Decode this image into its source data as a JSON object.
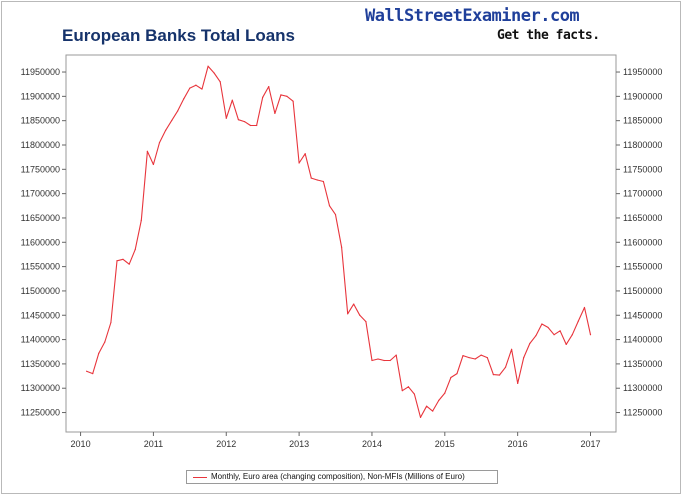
{
  "header": {
    "title": "European Banks Total Loans",
    "brand": "WallStreetExaminer.com",
    "tagline": "Get the facts."
  },
  "colors": {
    "line": "#e8353c",
    "title": "#16336b",
    "brand": "#1f3f9a"
  },
  "chart_data": {
    "type": "line",
    "title": "European Banks Total Loans",
    "xlabel": "",
    "ylabel": "",
    "grid": false,
    "legend_position": "bottom-center",
    "xlim": [
      2009.8,
      2017.35
    ],
    "ylim": [
      11210000,
      11985000
    ],
    "x_ticks": [
      "2010",
      "2011",
      "2012",
      "2013",
      "2014",
      "2015",
      "2016",
      "2017"
    ],
    "y_ticks": [
      "11250000",
      "11300000",
      "11350000",
      "11400000",
      "11450000",
      "11500000",
      "11550000",
      "11600000",
      "11650000",
      "11700000",
      "11750000",
      "11800000",
      "11850000",
      "11900000",
      "11950000"
    ],
    "series": [
      {
        "name": "Monthly, Euro area (changing composition), Non-MFIs (Millions of Euro)",
        "x": [
          2010.083,
          2010.167,
          2010.25,
          2010.333,
          2010.417,
          2010.5,
          2010.583,
          2010.667,
          2010.75,
          2010.833,
          2010.917,
          2011.0,
          2011.083,
          2011.167,
          2011.25,
          2011.333,
          2011.417,
          2011.5,
          2011.583,
          2011.667,
          2011.75,
          2011.833,
          2011.917,
          2012.0,
          2012.083,
          2012.167,
          2012.25,
          2012.333,
          2012.417,
          2012.5,
          2012.583,
          2012.667,
          2012.75,
          2012.833,
          2012.917,
          2013.0,
          2013.083,
          2013.167,
          2013.25,
          2013.333,
          2013.417,
          2013.5,
          2013.583,
          2013.667,
          2013.75,
          2013.833,
          2013.917,
          2014.0,
          2014.083,
          2014.167,
          2014.25,
          2014.333,
          2014.417,
          2014.5,
          2014.583,
          2014.667,
          2014.75,
          2014.833,
          2014.917,
          2015.0,
          2015.083,
          2015.167,
          2015.25,
          2015.333,
          2015.417,
          2015.5,
          2015.583,
          2015.667,
          2015.75,
          2015.833,
          2015.917,
          2016.0,
          2016.083,
          2016.167,
          2016.25,
          2016.333,
          2016.417,
          2016.5,
          2016.583,
          2016.667,
          2016.75,
          2016.833,
          2016.917,
          2017.0
        ],
        "values": [
          11335000,
          11330000,
          11372000,
          11395000,
          11435000,
          11562000,
          11565000,
          11555000,
          11585000,
          11645000,
          11787000,
          11760000,
          11805000,
          11830000,
          11850000,
          11870000,
          11895000,
          11917000,
          11923000,
          11915000,
          11962000,
          11948000,
          11930000,
          11855000,
          11892000,
          11852000,
          11848000,
          11840000,
          11840000,
          11898000,
          11920000,
          11865000,
          11903000,
          11900000,
          11890000,
          11763000,
          11782000,
          11732000,
          11728000,
          11725000,
          11675000,
          11657000,
          11590000,
          11453000,
          11473000,
          11450000,
          11437000,
          11357000,
          11360000,
          11357000,
          11357000,
          11368000,
          11295000,
          11303000,
          11288000,
          11240000,
          11263000,
          11253000,
          11275000,
          11290000,
          11322000,
          11330000,
          11367000,
          11363000,
          11360000,
          11368000,
          11363000,
          11328000,
          11327000,
          11343000,
          11380000,
          11310000,
          11363000,
          11392000,
          11408000,
          11432000,
          11425000,
          11410000,
          11418000,
          11390000,
          11410000,
          11438000,
          11466000,
          11410000
        ]
      }
    ]
  }
}
